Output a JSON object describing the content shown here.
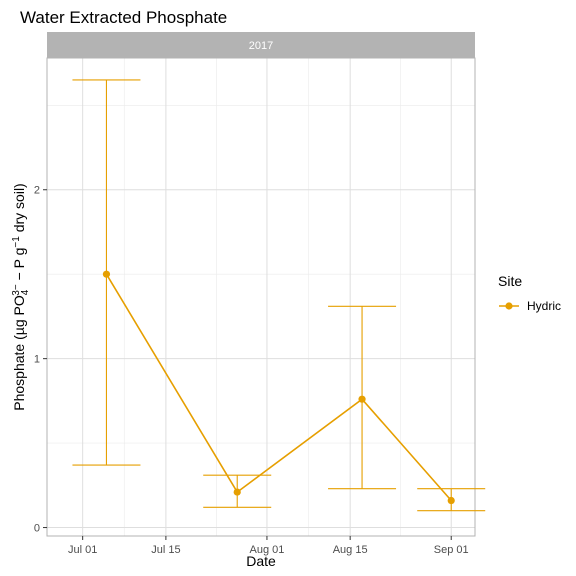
{
  "chart_data": {
    "type": "line",
    "title": "Water Extracted Phosphate",
    "facet_label": "2017",
    "xlabel": "Date",
    "ylabel": {
      "prefix": "Phosphate (µg PO",
      "sub": "4",
      "sup": "3−",
      "middle": " − P g",
      "sup2": "−1",
      "suffix": " dry soil)"
    },
    "x_ticks": [
      {
        "date": "2017-07-01",
        "label": "Jul 01"
      },
      {
        "date": "2017-07-15",
        "label": "Jul 15"
      },
      {
        "date": "2017-08-01",
        "label": "Aug 01"
      },
      {
        "date": "2017-08-15",
        "label": "Aug 15"
      },
      {
        "date": "2017-09-01",
        "label": "Sep 01"
      }
    ],
    "x_range": [
      "2016-06-25",
      "2017-09-05"
    ],
    "y_ticks": [
      0,
      1,
      2
    ],
    "ylim": [
      -0.05,
      2.78
    ],
    "legend": {
      "title": "Site",
      "position": "right"
    },
    "series": [
      {
        "name": "Hydric",
        "color": "#E69F00",
        "points": [
          {
            "x": "2017-07-05",
            "y": 1.5,
            "ymin": 0.37,
            "ymax": 2.65
          },
          {
            "x": "2017-07-27",
            "y": 0.21,
            "ymin": 0.12,
            "ymax": 0.31
          },
          {
            "x": "2017-08-17",
            "y": 0.76,
            "ymin": 0.23,
            "ymax": 1.31
          },
          {
            "x": "2017-09-01",
            "y": 0.16,
            "ymin": 0.1,
            "ymax": 0.23
          }
        ]
      }
    ]
  }
}
